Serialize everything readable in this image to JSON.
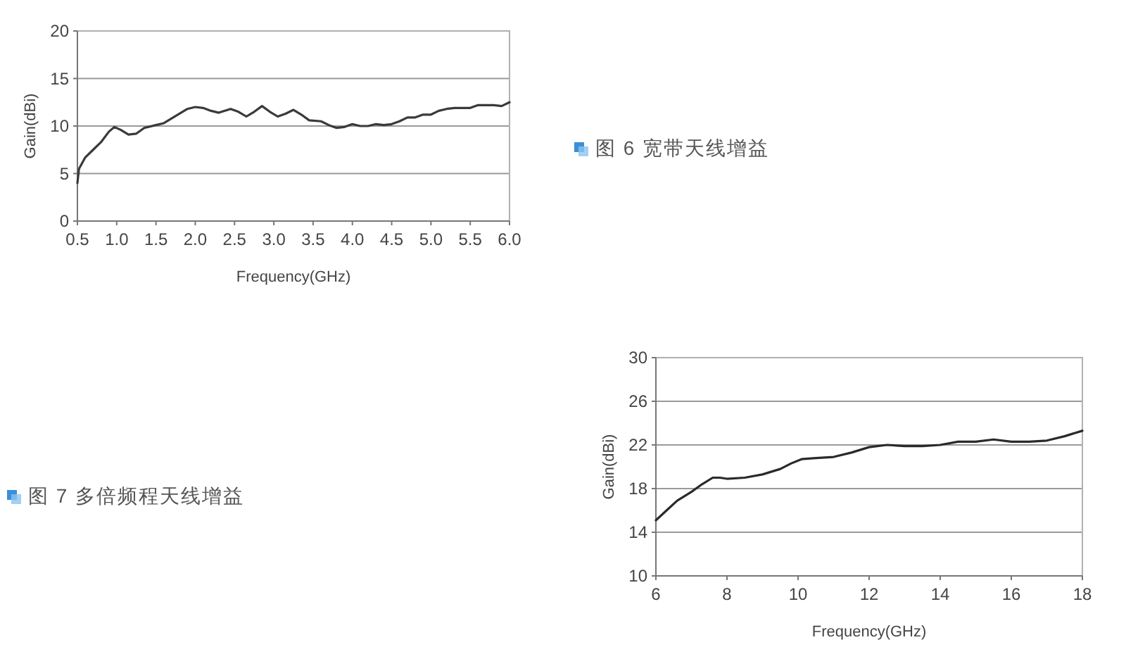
{
  "chart_data": [
    {
      "type": "line",
      "xlabel": "Frequency(GHz)",
      "ylabel": "Gain(dBi)",
      "xlim": [
        0.5,
        6
      ],
      "ylim": [
        0,
        20
      ],
      "xticks": [
        0.5,
        {
          "value": 1,
          "label": "1.0"
        },
        1.5,
        {
          "value": 2,
          "label": "2.0"
        },
        2.5,
        {
          "value": 3,
          "label": "3.0"
        },
        3.5,
        {
          "value": 4,
          "label": "4.0"
        },
        4.5,
        {
          "value": 5,
          "label": "5.0"
        },
        5.5,
        {
          "value": 6,
          "label": "6.0"
        }
      ],
      "yticks": [
        0,
        5,
        10,
        15,
        20
      ],
      "grid": "y",
      "series": [
        {
          "color": "#3a3a3a",
          "x": [
            0.5,
            0.52,
            0.6,
            0.7,
            0.8,
            0.9,
            0.97,
            1.05,
            1.15,
            1.25,
            1.35,
            1.5,
            1.6,
            1.7,
            1.8,
            1.9,
            2.0,
            2.1,
            2.2,
            2.3,
            2.45,
            2.55,
            2.65,
            2.75,
            2.85,
            2.95,
            3.05,
            3.15,
            3.25,
            3.35,
            3.45,
            3.6,
            3.7,
            3.8,
            3.9,
            4.0,
            4.1,
            4.2,
            4.3,
            4.4,
            4.5,
            4.6,
            4.7,
            4.8,
            4.9,
            5.0,
            5.1,
            5.2,
            5.3,
            5.4,
            5.5,
            5.6,
            5.7,
            5.8,
            5.9,
            6.0
          ],
          "values": [
            4.0,
            5.5,
            6.7,
            7.5,
            8.3,
            9.4,
            9.9,
            9.6,
            9.1,
            9.2,
            9.8,
            10.1,
            10.3,
            10.8,
            11.3,
            11.8,
            12.0,
            11.9,
            11.6,
            11.4,
            11.8,
            11.5,
            11.0,
            11.5,
            12.1,
            11.5,
            11.0,
            11.3,
            11.7,
            11.2,
            10.6,
            10.5,
            10.1,
            9.8,
            9.9,
            10.2,
            10.0,
            10.0,
            10.2,
            10.1,
            10.2,
            10.5,
            10.9,
            10.9,
            11.2,
            11.2,
            11.6,
            11.8,
            11.9,
            11.9,
            11.9,
            12.2,
            12.2,
            12.2,
            12.1,
            12.5
          ]
        }
      ]
    },
    {
      "type": "other",
      "title": "图 6 宽带天线增益"
    },
    {
      "type": "other",
      "title": "图 7 多倍频程天线增益"
    },
    {
      "type": "line",
      "xlabel": "Frequency(GHz)",
      "ylabel": "Gain(dBi)",
      "xlim": [
        6,
        18
      ],
      "ylim": [
        10,
        30
      ],
      "xticks": [
        6,
        8,
        10,
        12,
        14,
        16,
        18
      ],
      "yticks": [
        10,
        14,
        18,
        22,
        26,
        30
      ],
      "grid": "y",
      "series": [
        {
          "color": "#2a2a2a",
          "x": [
            6.0,
            6.3,
            6.6,
            7.0,
            7.3,
            7.6,
            7.8,
            8.0,
            8.5,
            9.0,
            9.5,
            9.8,
            10.1,
            10.5,
            11.0,
            11.5,
            12.0,
            12.5,
            13.0,
            13.5,
            14.0,
            14.5,
            15.0,
            15.5,
            16.0,
            16.5,
            17.0,
            17.5,
            18.0
          ],
          "values": [
            15.1,
            16.0,
            16.9,
            17.7,
            18.4,
            19.0,
            19.0,
            18.9,
            19.0,
            19.3,
            19.8,
            20.3,
            20.7,
            20.8,
            20.9,
            21.3,
            21.8,
            22.0,
            21.9,
            21.9,
            22.0,
            22.3,
            22.3,
            22.5,
            22.3,
            22.3,
            22.4,
            22.8,
            23.3
          ]
        }
      ]
    }
  ]
}
